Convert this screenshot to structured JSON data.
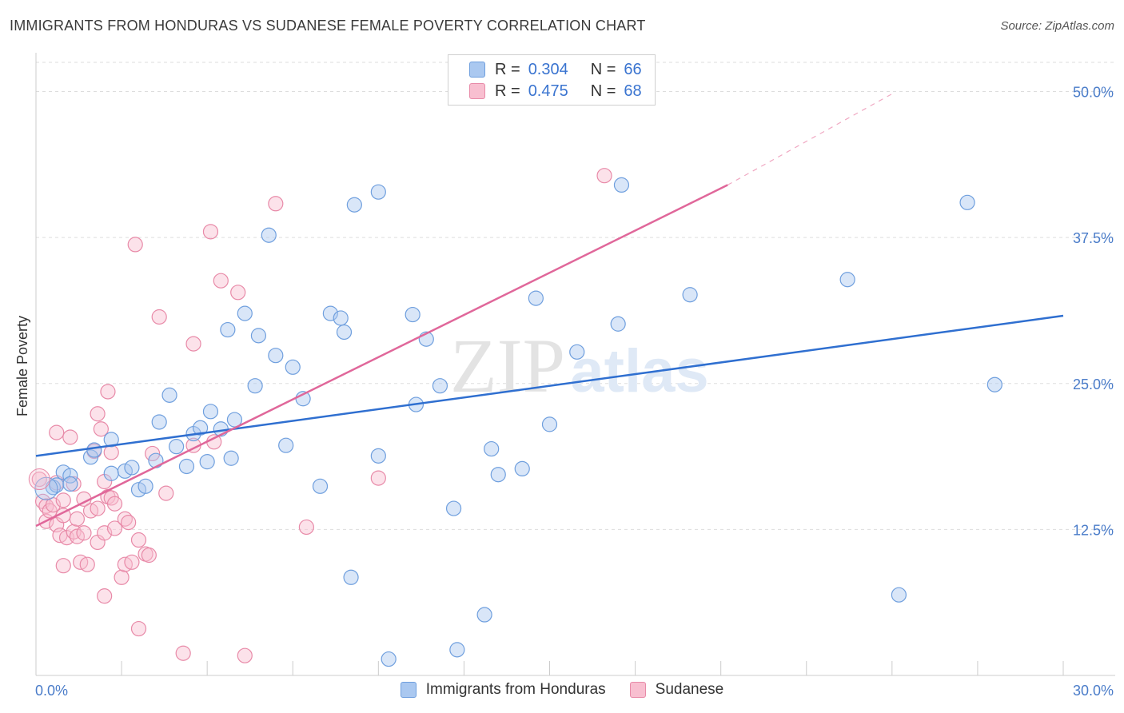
{
  "title": "IMMIGRANTS FROM HONDURAS VS SUDANESE FEMALE POVERTY CORRELATION CHART",
  "source": "Source: ZipAtlas.com",
  "watermark_main": "ZIP",
  "watermark_sub": "atlas",
  "legend": {
    "r_label": "R =",
    "n_label": "N =",
    "rows": [
      {
        "name": "Immigrants from Honduras",
        "r": "0.304",
        "n": "66",
        "fill": "#aac8f0",
        "stroke": "#6f9fde"
      },
      {
        "name": "Sudanese",
        "r": "0.475",
        "n": "68",
        "fill": "#f8bfd0",
        "stroke": "#e88aa8"
      }
    ]
  },
  "colors": {
    "blue_line": "#2f6fd0",
    "pink_line": "#e0679a",
    "tick_text": "#4a7cc9",
    "grid": "#dddddd"
  },
  "chart_data": {
    "type": "scatter",
    "title": "IMMIGRANTS FROM HONDURAS VS SUDANESE FEMALE POVERTY CORRELATION CHART",
    "xlabel": "",
    "ylabel": "Female Poverty",
    "xlim": [
      0,
      30
    ],
    "ylim": [
      0,
      52.5
    ],
    "x_tick_labels": [
      "0.0%",
      "30.0%"
    ],
    "y_tick_values": [
      12.5,
      25.0,
      37.5,
      50.0
    ],
    "y_tick_labels": [
      "12.5%",
      "25.0%",
      "37.5%",
      "50.0%"
    ],
    "grid": true,
    "legend_position": "top-center",
    "series": [
      {
        "name": "Immigrants from Honduras",
        "color": "#6f9fde",
        "fit": {
          "x0": 0,
          "y0": 18.8,
          "x1": 30,
          "y1": 30.8
        },
        "points": [
          [
            0.5,
            16.1
          ],
          [
            0.6,
            16.3
          ],
          [
            0.8,
            17.4
          ],
          [
            1.0,
            17.1
          ],
          [
            1.0,
            16.4
          ],
          [
            1.6,
            18.7
          ],
          [
            1.7,
            19.3
          ],
          [
            2.2,
            20.2
          ],
          [
            2.2,
            17.3
          ],
          [
            2.6,
            17.5
          ],
          [
            2.8,
            17.8
          ],
          [
            3.0,
            15.9
          ],
          [
            3.2,
            16.2
          ],
          [
            3.5,
            18.4
          ],
          [
            3.6,
            21.7
          ],
          [
            3.9,
            24.0
          ],
          [
            4.1,
            19.6
          ],
          [
            4.4,
            17.9
          ],
          [
            4.6,
            20.7
          ],
          [
            4.8,
            21.2
          ],
          [
            5.0,
            18.3
          ],
          [
            5.1,
            22.6
          ],
          [
            5.4,
            21.1
          ],
          [
            5.6,
            29.6
          ],
          [
            5.7,
            18.6
          ],
          [
            5.8,
            21.9
          ],
          [
            6.1,
            31.0
          ],
          [
            6.4,
            24.8
          ],
          [
            6.5,
            29.1
          ],
          [
            6.8,
            37.7
          ],
          [
            7.0,
            27.4
          ],
          [
            7.3,
            19.7
          ],
          [
            7.5,
            26.4
          ],
          [
            7.8,
            23.7
          ],
          [
            8.3,
            16.2
          ],
          [
            8.6,
            31.0
          ],
          [
            8.9,
            30.6
          ],
          [
            9.0,
            29.4
          ],
          [
            9.2,
            8.4
          ],
          [
            9.3,
            40.3
          ],
          [
            10.0,
            41.4
          ],
          [
            10.0,
            18.8
          ],
          [
            10.3,
            1.4
          ],
          [
            11.0,
            30.9
          ],
          [
            11.1,
            23.2
          ],
          [
            11.4,
            28.8
          ],
          [
            11.8,
            24.8
          ],
          [
            12.2,
            14.3
          ],
          [
            12.3,
            2.2
          ],
          [
            13.1,
            5.2
          ],
          [
            13.3,
            19.4
          ],
          [
            13.5,
            17.2
          ],
          [
            14.2,
            17.7
          ],
          [
            14.6,
            32.3
          ],
          [
            15.0,
            21.5
          ],
          [
            15.8,
            27.7
          ],
          [
            17.0,
            30.1
          ],
          [
            17.1,
            42.0
          ],
          [
            19.1,
            32.6
          ],
          [
            23.7,
            33.9
          ],
          [
            25.2,
            6.9
          ],
          [
            27.2,
            40.5
          ],
          [
            28.0,
            24.9
          ]
        ]
      },
      {
        "name": "Sudanese",
        "color": "#e88aa8",
        "fit": {
          "x0": 0,
          "y0": 12.8,
          "x1": 20.2,
          "y1": 42.0,
          "dashed_to": {
            "x": 25.0,
            "y": 49.8
          }
        },
        "points": [
          [
            0.1,
            16.8
          ],
          [
            0.2,
            14.9
          ],
          [
            0.3,
            14.5
          ],
          [
            0.3,
            13.2
          ],
          [
            0.4,
            14.1
          ],
          [
            0.5,
            14.6
          ],
          [
            0.6,
            12.9
          ],
          [
            0.6,
            16.5
          ],
          [
            0.6,
            20.8
          ],
          [
            0.7,
            12.0
          ],
          [
            0.8,
            15.0
          ],
          [
            0.8,
            9.4
          ],
          [
            0.8,
            13.7
          ],
          [
            0.9,
            11.8
          ],
          [
            1.0,
            20.4
          ],
          [
            1.1,
            16.4
          ],
          [
            1.1,
            12.3
          ],
          [
            1.2,
            13.4
          ],
          [
            1.2,
            11.9
          ],
          [
            1.3,
            9.7
          ],
          [
            1.4,
            15.1
          ],
          [
            1.4,
            12.2
          ],
          [
            1.5,
            9.5
          ],
          [
            1.6,
            14.1
          ],
          [
            1.7,
            19.2
          ],
          [
            1.8,
            11.4
          ],
          [
            1.8,
            14.3
          ],
          [
            1.8,
            22.4
          ],
          [
            1.9,
            21.1
          ],
          [
            2.0,
            16.6
          ],
          [
            2.0,
            6.8
          ],
          [
            2.0,
            12.2
          ],
          [
            2.1,
            15.3
          ],
          [
            2.1,
            24.3
          ],
          [
            2.2,
            19.1
          ],
          [
            2.2,
            15.2
          ],
          [
            2.3,
            14.7
          ],
          [
            2.3,
            12.6
          ],
          [
            2.5,
            8.4
          ],
          [
            2.6,
            13.4
          ],
          [
            2.6,
            9.5
          ],
          [
            2.7,
            13.1
          ],
          [
            2.8,
            9.7
          ],
          [
            2.9,
            36.9
          ],
          [
            3.0,
            11.6
          ],
          [
            3.0,
            4.0
          ],
          [
            3.2,
            10.4
          ],
          [
            3.3,
            10.3
          ],
          [
            3.4,
            19.0
          ],
          [
            3.6,
            30.7
          ],
          [
            3.8,
            15.6
          ],
          [
            4.3,
            1.9
          ],
          [
            4.6,
            28.4
          ],
          [
            4.6,
            19.7
          ],
          [
            5.1,
            38.0
          ],
          [
            5.2,
            20.0
          ],
          [
            5.4,
            33.8
          ],
          [
            5.9,
            32.8
          ],
          [
            6.1,
            1.7
          ],
          [
            7.0,
            40.4
          ],
          [
            7.9,
            12.7
          ],
          [
            10.0,
            16.9
          ],
          [
            16.6,
            42.8
          ]
        ]
      }
    ]
  }
}
